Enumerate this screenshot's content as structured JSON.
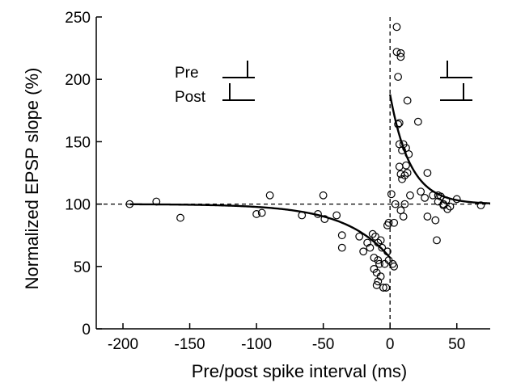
{
  "chart_data": {
    "type": "scatter",
    "title": "",
    "xlabel": "Pre/post spike interval (ms)",
    "ylabel": "Normalized EPSP slope (%)",
    "xlim": [
      -220,
      75
    ],
    "ylim": [
      0,
      250
    ],
    "xticks": [
      -200,
      -150,
      -100,
      -50,
      0,
      50
    ],
    "yticks": [
      0,
      50,
      100,
      150,
      200,
      250
    ],
    "xtick_labels": [
      "-200",
      "-150",
      "-100",
      "-50",
      "0",
      "50"
    ],
    "ytick_labels": [
      "0",
      "50",
      "100",
      "150",
      "200",
      "250"
    ],
    "grid": false,
    "reference_lines": {
      "y": 100,
      "x": 0,
      "style": "dashed"
    },
    "series": [
      {
        "marker": "open-circle",
        "x": [
          -195,
          -175,
          -157,
          -100,
          -96,
          -90,
          -66,
          -54,
          -50,
          -49,
          -40,
          -36,
          -36,
          -23,
          -20,
          -17,
          -15,
          -13,
          -12,
          -12,
          -11,
          -10,
          -10,
          -9,
          -9,
          -9,
          -8,
          -7,
          -7,
          -6,
          -5,
          -4,
          -3,
          -2,
          -2,
          -1,
          -1,
          1,
          2,
          3,
          3,
          4,
          5,
          5,
          6,
          6,
          7,
          7,
          7,
          8,
          8,
          8,
          8,
          9,
          9,
          10,
          10,
          11,
          11,
          12,
          12,
          13,
          13,
          14,
          15,
          21,
          23,
          26,
          28,
          28,
          32,
          34,
          35,
          36,
          36,
          38,
          40,
          40,
          42,
          43,
          45,
          50,
          68
        ],
        "y": [
          100,
          102,
          89,
          92,
          93,
          107,
          91,
          92,
          107,
          88,
          91,
          65,
          75,
          74,
          62,
          69,
          65,
          76,
          57,
          48,
          74,
          45,
          35,
          69,
          55,
          38,
          52,
          42,
          71,
          65,
          33,
          52,
          33,
          83,
          62,
          85,
          55,
          108,
          52,
          50,
          85,
          100,
          242,
          222,
          202,
          164,
          165,
          148,
          130,
          95,
          124,
          218,
          221,
          120,
          143,
          148,
          90,
          123,
          100,
          131,
          145,
          183,
          125,
          140,
          107,
          166,
          110,
          105,
          125,
          90,
          107,
          87,
          71,
          107,
          102,
          106,
          99,
          100,
          103,
          96,
          98,
          104,
          99
        ]
      }
    ],
    "fit_curves": [
      {
        "name": "",
        "domain": [
          -195,
          0
        ],
        "form": "100 - 43*exp(x/34)"
      },
      {
        "name": "",
        "domain": [
          0,
          75
        ],
        "form": "100 + 88*exp(-x/15)"
      }
    ],
    "inset": {
      "pre_label": "Pre",
      "post_label": "Post"
    }
  }
}
